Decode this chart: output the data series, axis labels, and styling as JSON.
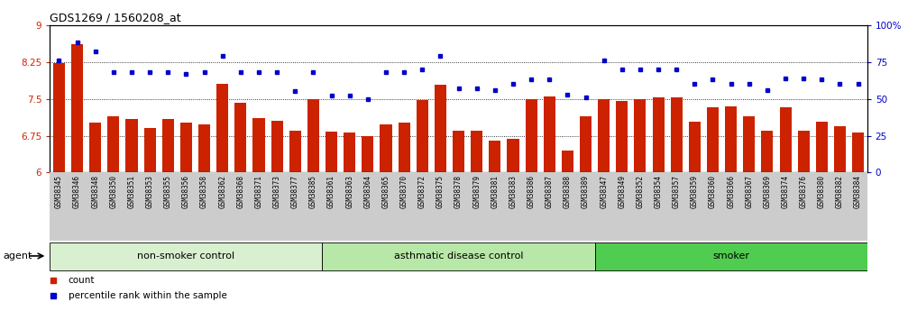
{
  "title": "GDS1269 / 1560208_at",
  "samples": [
    "GSM38345",
    "GSM38346",
    "GSM38348",
    "GSM38350",
    "GSM38351",
    "GSM38353",
    "GSM38355",
    "GSM38356",
    "GSM38358",
    "GSM38362",
    "GSM38368",
    "GSM38371",
    "GSM38373",
    "GSM38377",
    "GSM38385",
    "GSM38361",
    "GSM38363",
    "GSM38364",
    "GSM38365",
    "GSM38370",
    "GSM38372",
    "GSM38375",
    "GSM38378",
    "GSM38379",
    "GSM38381",
    "GSM38383",
    "GSM38386",
    "GSM38387",
    "GSM38388",
    "GSM38389",
    "GSM38347",
    "GSM38349",
    "GSM38352",
    "GSM38354",
    "GSM38357",
    "GSM38359",
    "GSM38360",
    "GSM38366",
    "GSM38367",
    "GSM38369",
    "GSM38374",
    "GSM38376",
    "GSM38380",
    "GSM38382",
    "GSM38384"
  ],
  "bar_values": [
    8.22,
    8.6,
    7.02,
    7.14,
    7.08,
    6.9,
    7.08,
    7.02,
    6.98,
    7.8,
    7.42,
    7.1,
    7.05,
    6.85,
    7.5,
    6.83,
    6.82,
    6.75,
    6.98,
    7.02,
    7.48,
    7.78,
    6.85,
    6.85,
    6.65,
    6.68,
    7.5,
    7.55,
    6.45,
    7.15,
    7.5,
    7.46,
    7.5,
    7.52,
    7.52,
    7.03,
    7.33,
    7.35,
    7.15,
    6.85,
    7.33,
    6.85,
    7.03,
    6.95,
    6.82
  ],
  "dot_values_pct": [
    76,
    88,
    82,
    68,
    68,
    68,
    68,
    67,
    68,
    79,
    68,
    68,
    68,
    55,
    68,
    52,
    52,
    50,
    68,
    68,
    70,
    79,
    57,
    57,
    56,
    60,
    63,
    63,
    53,
    51,
    76,
    70,
    70,
    70,
    70,
    60,
    63,
    60,
    60,
    56,
    64,
    64,
    63,
    60,
    60
  ],
  "groups": [
    {
      "label": "non-smoker control",
      "start": 0,
      "end": 15,
      "color": "#d8f0d0"
    },
    {
      "label": "asthmatic disease control",
      "start": 15,
      "end": 30,
      "color": "#b8e8a8"
    },
    {
      "label": "smoker",
      "start": 30,
      "end": 45,
      "color": "#50cc50"
    }
  ],
  "ylim_left": [
    6.0,
    9.0
  ],
  "ylim_right": [
    0,
    100
  ],
  "yticks_left": [
    6.0,
    6.75,
    7.5,
    8.25,
    9.0
  ],
  "yticks_right": [
    0,
    25,
    50,
    75,
    100
  ],
  "ytick_labels_left": [
    "6",
    "6.75",
    "7.5",
    "8.25",
    "9"
  ],
  "ytick_labels_right": [
    "0",
    "25",
    "50",
    "75",
    "100%"
  ],
  "hlines": [
    6.75,
    7.5,
    8.25
  ],
  "bar_color": "#cc2200",
  "dot_color": "#0000cc",
  "bar_width": 0.65,
  "legend_items": [
    {
      "label": "count",
      "color": "#cc2200"
    },
    {
      "label": "percentile rank within the sample",
      "color": "#0000cc"
    }
  ],
  "agent_label": "agent",
  "background_color": "#ffffff",
  "title_fontsize": 9,
  "axis_fontsize": 7.5,
  "tick_label_fontsize": 5.5,
  "group_label_fontsize": 8
}
